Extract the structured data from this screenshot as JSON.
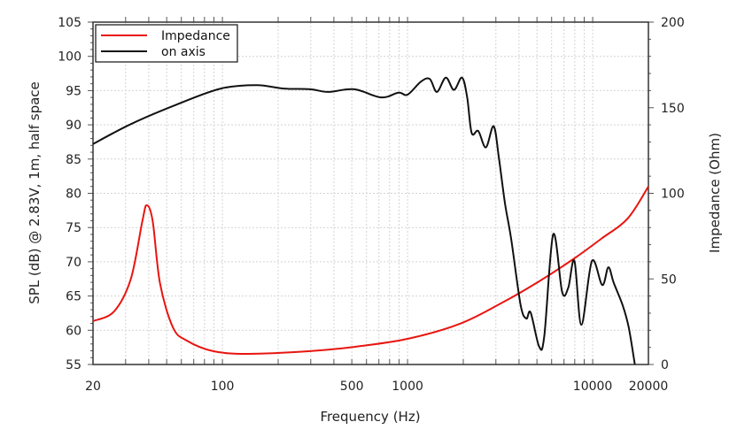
{
  "chart_data": {
    "type": "line",
    "title": "",
    "xlabel": "Frequency (Hz)",
    "ylabel": "SPL (dB) @ 2.83V, 1m, half space",
    "y2label": "Impedance (Ohm)",
    "xscale": "log",
    "xlim": [
      20,
      20000
    ],
    "ylim": [
      55,
      105
    ],
    "y2lim": [
      0,
      200
    ],
    "grid": true,
    "legend_position": "top-left",
    "x_ticks": [
      {
        "value": 20,
        "label": "20"
      },
      {
        "value": 100,
        "label": "100"
      },
      {
        "value": 500,
        "label": "500"
      },
      {
        "value": 1000,
        "label": "1000"
      },
      {
        "value": 10000,
        "label": "10000"
      },
      {
        "value": 20000,
        "label": "20000"
      }
    ],
    "y_ticks": [
      {
        "value": 55,
        "label": "55"
      },
      {
        "value": 60,
        "label": "60"
      },
      {
        "value": 65,
        "label": "65"
      },
      {
        "value": 70,
        "label": "70"
      },
      {
        "value": 75,
        "label": "75"
      },
      {
        "value": 80,
        "label": "80"
      },
      {
        "value": 85,
        "label": "85"
      },
      {
        "value": 90,
        "label": "90"
      },
      {
        "value": 95,
        "label": "95"
      },
      {
        "value": 100,
        "label": "100"
      },
      {
        "value": 105,
        "label": "105"
      }
    ],
    "y2_ticks": [
      {
        "value": 0,
        "label": "0"
      },
      {
        "value": 50,
        "label": "50"
      },
      {
        "value": 100,
        "label": "100"
      },
      {
        "value": 150,
        "label": "150"
      },
      {
        "value": 200,
        "label": "200"
      }
    ],
    "series": [
      {
        "name": "Impedance",
        "axis": "right",
        "color": "#e8150f",
        "x": [
          20,
          26,
          32,
          37,
          39,
          42,
          46,
          54,
          64,
          89,
          137,
          298,
          515,
          1000,
          1940,
          3360,
          5140,
          7970,
          11100,
          15450,
          20000
        ],
        "y": [
          25.3,
          31,
          50,
          84,
          93,
          84,
          47.5,
          21.7,
          14,
          7.8,
          6.2,
          7.8,
          10.3,
          15,
          24,
          37,
          48.6,
          62,
          73.4,
          85.3,
          104
        ]
      },
      {
        "name": "on axis",
        "axis": "left",
        "color": "#111111",
        "x": [
          20,
          32,
          57,
          98,
          153,
          214,
          298,
          372,
          515,
          720,
          893,
          1000,
          1180,
          1318,
          1440,
          1610,
          1780,
          1970,
          2100,
          2220,
          2410,
          2650,
          2920,
          3120,
          3360,
          3630,
          4080,
          4380,
          4620,
          5140,
          5480,
          6120,
          6840,
          7380,
          7970,
          8690,
          9900,
          11260,
          12150,
          13000,
          14500,
          15660,
          16890
        ],
        "y": [
          87.2,
          90.1,
          93.0,
          95.3,
          95.8,
          95.3,
          95.2,
          94.8,
          95.2,
          94.0,
          94.7,
          94.4,
          96.3,
          96.7,
          94.8,
          96.9,
          95.1,
          96.9,
          94.0,
          88.8,
          89.1,
          86.7,
          89.8,
          85.0,
          78.5,
          73.3,
          63.7,
          61.7,
          62.6,
          57.6,
          59.2,
          74.0,
          65.6,
          66.2,
          70.1,
          60.8,
          70.1,
          66.6,
          69.2,
          66.9,
          63.7,
          60.4,
          55.0
        ]
      }
    ]
  }
}
